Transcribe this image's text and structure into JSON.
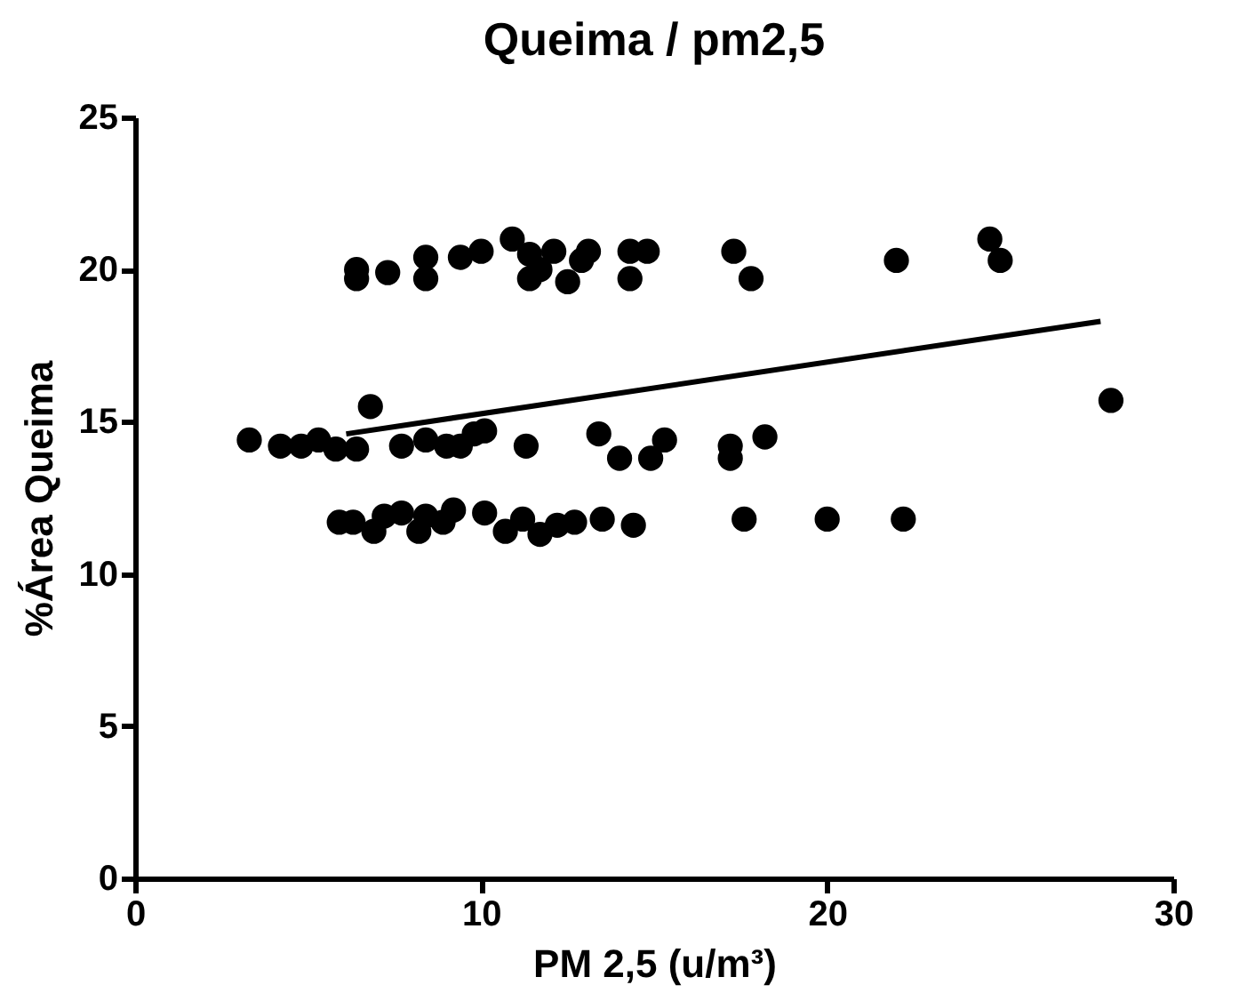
{
  "chart_data": {
    "type": "scatter",
    "title": "Queima / pm2,5",
    "xlabel": "PM 2,5 (u/m³)",
    "ylabel": "%Área Queima",
    "xlim": [
      0,
      30
    ],
    "xticks": [
      0,
      10,
      20,
      30
    ],
    "ylim": [
      0,
      25
    ],
    "yticks": [
      0,
      5,
      10,
      15,
      20,
      25
    ],
    "grid": false,
    "series": [
      {
        "color": "#000000",
        "marker": "circle",
        "x": [
          6.4,
          6.4,
          7.3,
          8.4,
          8.4,
          9.4,
          10.0,
          10.9,
          11.4,
          11.4,
          11.7,
          12.1,
          12.5,
          12.9,
          13.1,
          14.3,
          14.8,
          14.3,
          17.3,
          17.8,
          22.0,
          24.7,
          25.0,
          3.3,
          4.2,
          4.8,
          5.3,
          5.8,
          6.4,
          6.8,
          7.7,
          8.4,
          9.0,
          9.4,
          9.8,
          10.1,
          11.3,
          13.4,
          14.0,
          14.9,
          15.3,
          17.2,
          17.2,
          18.2,
          28.2,
          5.9,
          6.3,
          6.9,
          7.2,
          7.7,
          8.2,
          8.4,
          8.9,
          9.2,
          10.1,
          10.7,
          11.2,
          11.7,
          12.2,
          12.7,
          13.5,
          14.4,
          17.6,
          20.0,
          22.2
        ],
        "values": [
          20.0,
          19.7,
          19.9,
          20.4,
          19.7,
          20.4,
          20.6,
          21.0,
          20.5,
          19.7,
          20.0,
          20.6,
          19.6,
          20.3,
          20.6,
          20.6,
          20.6,
          19.7,
          20.6,
          19.7,
          20.3,
          21.0,
          20.3,
          14.4,
          14.2,
          14.2,
          14.4,
          14.1,
          14.1,
          15.5,
          14.2,
          14.4,
          14.2,
          14.2,
          14.6,
          14.7,
          14.2,
          14.6,
          13.8,
          13.8,
          14.4,
          14.2,
          13.8,
          14.5,
          15.7,
          11.7,
          11.7,
          11.4,
          11.9,
          12.0,
          11.4,
          11.9,
          11.7,
          12.1,
          12.0,
          11.4,
          11.8,
          11.3,
          11.6,
          11.7,
          11.8,
          11.6,
          11.8,
          11.8,
          11.8
        ]
      },
      {
        "type": "line",
        "marker": "none",
        "color": "#000000",
        "x": [
          6.1,
          27.9
        ],
        "values": [
          14.6,
          18.3
        ]
      }
    ]
  }
}
